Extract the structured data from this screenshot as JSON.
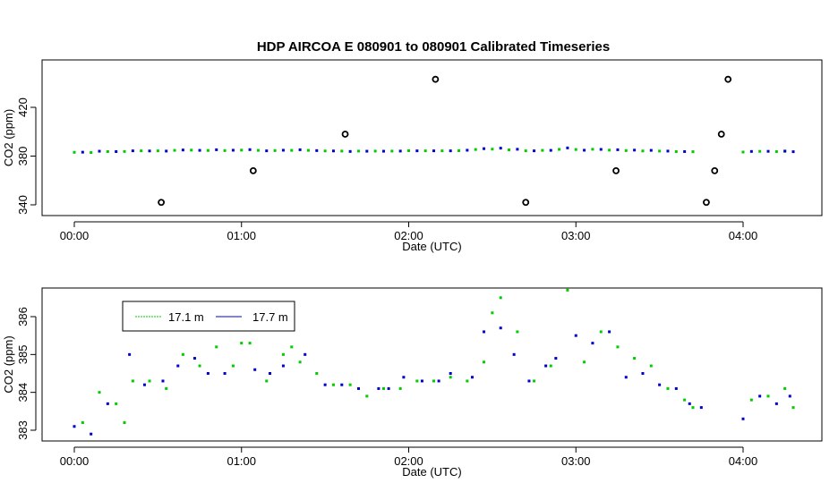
{
  "title": "HDP   AIRCOA  E   080901  to  080901   Calibrated Timeseries",
  "colors": {
    "series_a": "#00cc00",
    "series_b": "#0000cc",
    "outlier": "#000000"
  },
  "chart_data": [
    {
      "type": "scatter",
      "xlabel": "Date (UTC)",
      "ylabel": "CO2 (ppm)",
      "xlim": [
        0,
        4.3
      ],
      "ylim": [
        338,
        445
      ],
      "xticks": [
        {
          "value": 0,
          "label": "00:00"
        },
        {
          "value": 1,
          "label": "01:00"
        },
        {
          "value": 2,
          "label": "02:00"
        },
        {
          "value": 3,
          "label": "03:00"
        },
        {
          "value": 4,
          "label": "04:00"
        }
      ],
      "yticks": [
        {
          "value": 340,
          "label": "340"
        },
        {
          "value": 380,
          "label": "380"
        },
        {
          "value": 420,
          "label": "420"
        }
      ],
      "x_units": "hours (UTC)",
      "series": [
        {
          "values": [
            [
              0,
              383.1
            ],
            [
              0.1,
              382.9
            ],
            [
              0.2,
              383.7
            ],
            [
              0.3,
              383.8
            ],
            [
              0.4,
              384.3
            ],
            [
              0.5,
              384.3
            ],
            [
              0.6,
              384.7
            ],
            [
              0.7,
              384.9
            ],
            [
              0.8,
              384.6
            ],
            [
              0.9,
              384.5
            ],
            [
              1.0,
              384.9
            ],
            [
              1.1,
              384.7
            ],
            [
              1.2,
              384.5
            ],
            [
              1.3,
              384.7
            ],
            [
              1.4,
              384.7
            ],
            [
              1.5,
              384.2
            ],
            [
              1.6,
              384.1
            ],
            [
              1.7,
              384.1
            ],
            [
              1.8,
              384.1
            ],
            [
              1.9,
              384.1
            ],
            [
              2.0,
              384.4
            ],
            [
              2.1,
              384.3
            ],
            [
              2.2,
              384.3
            ],
            [
              2.3,
              384.4
            ],
            [
              2.4,
              385.4
            ],
            [
              2.5,
              385.7
            ],
            [
              2.6,
              385.1
            ],
            [
              2.7,
              384.3
            ],
            [
              2.8,
              384.7
            ],
            [
              2.9,
              385.5
            ],
            [
              3.0,
              385.4
            ],
            [
              3.1,
              385.6
            ],
            [
              3.2,
              384.9
            ],
            [
              3.3,
              384.5
            ],
            [
              3.4,
              384.2
            ],
            [
              3.5,
              384.1
            ],
            [
              3.6,
              383.7
            ],
            [
              3.7,
              383.6
            ],
            [
              4.0,
              383.3
            ],
            [
              4.1,
              383.9
            ],
            [
              4.2,
              383.7
            ],
            [
              4.25,
              383.9
            ]
          ]
        },
        {
          "values": [
            [
              0.05,
              383.2
            ],
            [
              0.15,
              384.0
            ],
            [
              0.25,
              383.7
            ],
            [
              0.35,
              384.3
            ],
            [
              0.45,
              384.2
            ],
            [
              0.55,
              384.1
            ],
            [
              0.65,
              385.0
            ],
            [
              0.75,
              384.7
            ],
            [
              0.85,
              385.2
            ],
            [
              0.95,
              384.8
            ],
            [
              1.05,
              385.3
            ],
            [
              1.15,
              384.3
            ],
            [
              1.25,
              384.8
            ],
            [
              1.35,
              385.2
            ],
            [
              1.45,
              384.5
            ],
            [
              1.55,
              384.2
            ],
            [
              1.65,
              383.8
            ],
            [
              1.75,
              384.0
            ],
            [
              1.85,
              384.0
            ],
            [
              1.95,
              384.1
            ],
            [
              2.05,
              384.3
            ],
            [
              2.15,
              384.3
            ],
            [
              2.25,
              384.3
            ],
            [
              2.35,
              384.8
            ],
            [
              2.45,
              386.1
            ],
            [
              2.55,
              386.5
            ],
            [
              2.65,
              385.6
            ],
            [
              2.75,
              384.3
            ],
            [
              2.85,
              384.7
            ],
            [
              2.95,
              386.7
            ],
            [
              3.05,
              384.8
            ],
            [
              3.15,
              385.5
            ],
            [
              3.25,
              385.2
            ],
            [
              3.35,
              384.9
            ],
            [
              3.45,
              384.7
            ],
            [
              3.55,
              384.1
            ],
            [
              3.65,
              383.7
            ],
            [
              4.05,
              383.8
            ],
            [
              4.15,
              383.9
            ],
            [
              4.25,
              384.1
            ],
            [
              4.3,
              383.6
            ]
          ]
        },
        {
          "values": [
            [
              0.52,
              342
            ],
            [
              1.07,
              368
            ],
            [
              1.62,
              398
            ],
            [
              2.16,
              443
            ],
            [
              2.7,
              342
            ],
            [
              3.24,
              368
            ],
            [
              3.78,
              342
            ],
            [
              3.83,
              368
            ],
            [
              3.87,
              398
            ],
            [
              3.91,
              443
            ]
          ]
        }
      ]
    },
    {
      "type": "scatter",
      "xlabel": "Date (UTC)",
      "ylabel": "CO2 (ppm)",
      "xlim": [
        0,
        4.3
      ],
      "ylim": [
        382.7,
        386.8
      ],
      "xticks": [
        {
          "value": 0,
          "label": "00:00"
        },
        {
          "value": 1,
          "label": "01:00"
        },
        {
          "value": 2,
          "label": "02:00"
        },
        {
          "value": 3,
          "label": "03:00"
        },
        {
          "value": 4,
          "label": "04:00"
        }
      ],
      "yticks": [
        {
          "value": 383,
          "label": "383"
        },
        {
          "value": 384,
          "label": "384"
        },
        {
          "value": 385,
          "label": "385"
        },
        {
          "value": 386,
          "label": "386"
        }
      ],
      "legend": {
        "placement": "top-left",
        "entries": [
          "17.1 m",
          "17.7 m"
        ]
      },
      "series": [
        {
          "name": "17.1 m",
          "values": [
            [
              0.05,
              383.2
            ],
            [
              0.15,
              384.0
            ],
            [
              0.25,
              383.7
            ],
            [
              0.3,
              383.2
            ],
            [
              0.35,
              384.3
            ],
            [
              0.45,
              384.3
            ],
            [
              0.55,
              384.1
            ],
            [
              0.65,
              385.0
            ],
            [
              0.75,
              384.7
            ],
            [
              0.85,
              385.2
            ],
            [
              0.95,
              384.7
            ],
            [
              1.0,
              385.3
            ],
            [
              1.05,
              385.3
            ],
            [
              1.15,
              384.3
            ],
            [
              1.25,
              385.0
            ],
            [
              1.3,
              385.2
            ],
            [
              1.35,
              384.8
            ],
            [
              1.45,
              384.5
            ],
            [
              1.55,
              384.2
            ],
            [
              1.65,
              384.2
            ],
            [
              1.75,
              383.9
            ],
            [
              1.85,
              384.1
            ],
            [
              1.95,
              384.1
            ],
            [
              2.05,
              384.3
            ],
            [
              2.15,
              384.3
            ],
            [
              2.25,
              384.4
            ],
            [
              2.35,
              384.3
            ],
            [
              2.45,
              384.8
            ],
            [
              2.5,
              386.1
            ],
            [
              2.55,
              386.5
            ],
            [
              2.65,
              385.6
            ],
            [
              2.75,
              384.3
            ],
            [
              2.85,
              384.7
            ],
            [
              2.95,
              386.7
            ],
            [
              3.05,
              384.8
            ],
            [
              3.15,
              385.6
            ],
            [
              3.25,
              385.2
            ],
            [
              3.35,
              384.9
            ],
            [
              3.45,
              384.7
            ],
            [
              3.55,
              384.1
            ],
            [
              3.65,
              383.8
            ],
            [
              3.7,
              383.6
            ],
            [
              4.05,
              383.8
            ],
            [
              4.15,
              383.9
            ],
            [
              4.25,
              384.1
            ],
            [
              4.3,
              383.6
            ]
          ]
        },
        {
          "name": "17.7 m",
          "values": [
            [
              0,
              383.1
            ],
            [
              0.1,
              382.9
            ],
            [
              0.2,
              383.7
            ],
            [
              0.33,
              385.0
            ],
            [
              0.42,
              384.2
            ],
            [
              0.53,
              384.3
            ],
            [
              0.62,
              384.7
            ],
            [
              0.72,
              384.9
            ],
            [
              0.8,
              384.5
            ],
            [
              0.9,
              384.5
            ],
            [
              1.08,
              384.6
            ],
            [
              1.17,
              384.5
            ],
            [
              1.25,
              384.7
            ],
            [
              1.38,
              385.0
            ],
            [
              1.5,
              384.2
            ],
            [
              1.6,
              384.2
            ],
            [
              1.7,
              384.1
            ],
            [
              1.82,
              384.1
            ],
            [
              1.88,
              384.1
            ],
            [
              1.97,
              384.4
            ],
            [
              2.08,
              384.3
            ],
            [
              2.18,
              384.3
            ],
            [
              2.25,
              384.5
            ],
            [
              2.38,
              384.4
            ],
            [
              2.45,
              385.6
            ],
            [
              2.55,
              385.7
            ],
            [
              2.63,
              385.0
            ],
            [
              2.72,
              384.3
            ],
            [
              2.82,
              384.7
            ],
            [
              2.88,
              384.9
            ],
            [
              3.0,
              385.5
            ],
            [
              3.1,
              385.3
            ],
            [
              3.2,
              385.6
            ],
            [
              3.3,
              384.4
            ],
            [
              3.4,
              384.5
            ],
            [
              3.5,
              384.2
            ],
            [
              3.6,
              384.1
            ],
            [
              3.68,
              383.7
            ],
            [
              3.75,
              383.6
            ],
            [
              4.0,
              383.3
            ],
            [
              4.1,
              383.9
            ],
            [
              4.2,
              383.7
            ],
            [
              4.28,
              383.9
            ]
          ]
        }
      ]
    }
  ]
}
